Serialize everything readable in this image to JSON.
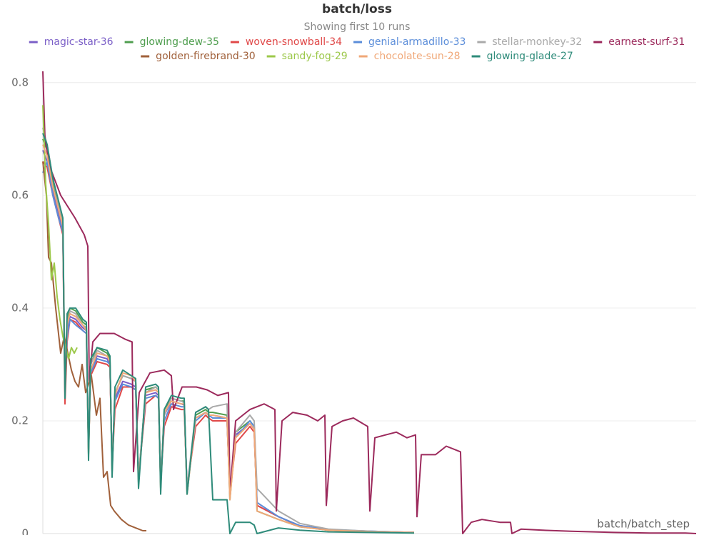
{
  "chart_data": {
    "type": "line",
    "title": "batch/loss",
    "subtitle": "Showing first 10 runs",
    "x_label": "batch/batch_step",
    "xlim": [
      0,
      915
    ],
    "ylim": [
      0,
      0.82
    ],
    "yticks": [
      0,
      0.2,
      0.4,
      0.6,
      0.8
    ],
    "grid": true,
    "series": [
      {
        "name": "magic-star-36",
        "color": "#7b5fc7",
        "x": [
          0,
          6,
          14,
          22,
          28,
          31,
          34,
          38,
          46,
          56,
          61,
          64,
          67,
          76,
          90,
          94,
          97,
          101,
          112,
          124,
          130,
          134,
          144,
          158,
          162,
          165,
          170,
          180,
          194,
          198,
          202,
          214,
          228,
          232,
          238,
          258,
          262,
          270,
          290,
          296,
          300,
          330,
          360,
          400,
          460,
          520
        ],
        "values": [
          0.68,
          0.66,
          0.61,
          0.57,
          0.54,
          0.26,
          0.36,
          0.385,
          0.38,
          0.365,
          0.36,
          0.15,
          0.29,
          0.315,
          0.31,
          0.3,
          0.12,
          0.24,
          0.27,
          0.265,
          0.26,
          0.1,
          0.245,
          0.25,
          0.245,
          0.09,
          0.21,
          0.235,
          0.23,
          0.228,
          0.08,
          0.205,
          0.215,
          0.21,
          0.21,
          0.205,
          0.07,
          0.175,
          0.195,
          0.185,
          0.05,
          0.03,
          0.014,
          0.007,
          0.004,
          0.002
        ]
      },
      {
        "name": "glowing-dew-35",
        "color": "#4f9e4f",
        "x": [
          0,
          6,
          14,
          22,
          28,
          31,
          34,
          38,
          46,
          56,
          61,
          64,
          67,
          76,
          90,
          94,
          97,
          101,
          112,
          124,
          130,
          134,
          144,
          158,
          162,
          165,
          170,
          180,
          194,
          198,
          202,
          214,
          228,
          232,
          238,
          258,
          262,
          270,
          290,
          296,
          300,
          330,
          360,
          400,
          460,
          520
        ],
        "values": [
          0.7,
          0.68,
          0.62,
          0.58,
          0.55,
          0.25,
          0.38,
          0.4,
          0.395,
          0.375,
          0.37,
          0.14,
          0.3,
          0.33,
          0.32,
          0.31,
          0.11,
          0.25,
          0.28,
          0.275,
          0.27,
          0.09,
          0.255,
          0.26,
          0.255,
          0.08,
          0.22,
          0.24,
          0.235,
          0.235,
          0.07,
          0.21,
          0.22,
          0.215,
          0.215,
          0.21,
          0.06,
          0.18,
          0.2,
          0.19,
          0.04,
          0.025,
          0.012,
          0.006,
          0.003,
          0.002
        ]
      },
      {
        "name": "woven-snowball-34",
        "color": "#e04848",
        "x": [
          0,
          6,
          14,
          22,
          28,
          31,
          34,
          38,
          46,
          56,
          61,
          64,
          67,
          76,
          90,
          94,
          97,
          101,
          112,
          124,
          130,
          134,
          144,
          158,
          162,
          165,
          170,
          180,
          194,
          198,
          202,
          214,
          228,
          232,
          238,
          258,
          262,
          270,
          290,
          296,
          300,
          330,
          360,
          400,
          460,
          520
        ],
        "values": [
          0.66,
          0.65,
          0.6,
          0.56,
          0.53,
          0.23,
          0.34,
          0.38,
          0.375,
          0.36,
          0.355,
          0.15,
          0.28,
          0.305,
          0.3,
          0.295,
          0.12,
          0.22,
          0.26,
          0.26,
          0.255,
          0.1,
          0.23,
          0.245,
          0.24,
          0.09,
          0.19,
          0.225,
          0.22,
          0.22,
          0.08,
          0.19,
          0.21,
          0.205,
          0.2,
          0.2,
          0.07,
          0.16,
          0.19,
          0.18,
          0.05,
          0.03,
          0.013,
          0.006,
          0.003,
          0.002
        ]
      },
      {
        "name": "genial-armadillo-33",
        "color": "#5b8dd9",
        "x": [
          0,
          6,
          14,
          22,
          28,
          31,
          34,
          38,
          46,
          56,
          61,
          64,
          67,
          76,
          90,
          94,
          97,
          101,
          112,
          124,
          130,
          134,
          144,
          158,
          162,
          165,
          170,
          180,
          194,
          198,
          202,
          214,
          228,
          232,
          238,
          258,
          262,
          270,
          290,
          296,
          300,
          330,
          360,
          400,
          460,
          520
        ],
        "values": [
          0.64,
          0.66,
          0.6,
          0.56,
          0.535,
          0.27,
          0.35,
          0.38,
          0.37,
          0.36,
          0.355,
          0.16,
          0.285,
          0.31,
          0.305,
          0.3,
          0.13,
          0.235,
          0.265,
          0.26,
          0.255,
          0.1,
          0.24,
          0.245,
          0.24,
          0.09,
          0.2,
          0.23,
          0.225,
          0.225,
          0.08,
          0.2,
          0.215,
          0.21,
          0.205,
          0.205,
          0.07,
          0.17,
          0.2,
          0.19,
          0.055,
          0.03,
          0.014,
          0.007,
          0.004,
          0.002
        ]
      },
      {
        "name": "stellar-monkey-32",
        "color": "#a9a9a9",
        "x": [
          0,
          6,
          14,
          22,
          28,
          31,
          34,
          38,
          46,
          56,
          61,
          64,
          67,
          76,
          90,
          94,
          97,
          101,
          112,
          124,
          130,
          134,
          144,
          158,
          162,
          165,
          170,
          180,
          194,
          198,
          202,
          214,
          228,
          232,
          238,
          258,
          262,
          270,
          290,
          296,
          300,
          330,
          360,
          400,
          460,
          520
        ],
        "values": [
          0.72,
          0.69,
          0.63,
          0.585,
          0.555,
          0.27,
          0.37,
          0.395,
          0.39,
          0.37,
          0.365,
          0.15,
          0.3,
          0.325,
          0.315,
          0.305,
          0.12,
          0.25,
          0.28,
          0.275,
          0.27,
          0.1,
          0.25,
          0.26,
          0.255,
          0.09,
          0.21,
          0.24,
          0.235,
          0.232,
          0.08,
          0.215,
          0.225,
          0.22,
          0.225,
          0.23,
          0.07,
          0.18,
          0.21,
          0.2,
          0.08,
          0.04,
          0.018,
          0.008,
          0.004,
          0.002
        ]
      },
      {
        "name": "earnest-surf-31",
        "color": "#9c2a5c",
        "x": [
          0,
          3,
          10,
          25,
          45,
          58,
          63,
          65,
          70,
          80,
          100,
          115,
          125,
          127,
          135,
          150,
          170,
          180,
          183,
          195,
          215,
          230,
          245,
          260,
          262,
          270,
          290,
          310,
          325,
          327,
          335,
          350,
          370,
          385,
          395,
          397,
          405,
          420,
          435,
          455,
          458,
          465,
          480,
          495,
          510,
          522,
          524,
          530,
          550,
          565,
          585,
          588,
          600,
          615,
          640,
          655,
          657,
          670,
          700,
          740,
          800,
          850,
          900,
          915
        ],
        "values": [
          0.82,
          0.7,
          0.65,
          0.6,
          0.56,
          0.53,
          0.51,
          0.27,
          0.34,
          0.355,
          0.355,
          0.345,
          0.34,
          0.11,
          0.25,
          0.285,
          0.29,
          0.28,
          0.22,
          0.26,
          0.26,
          0.255,
          0.245,
          0.25,
          0.07,
          0.2,
          0.22,
          0.23,
          0.22,
          0.04,
          0.2,
          0.215,
          0.21,
          0.2,
          0.21,
          0.05,
          0.19,
          0.2,
          0.205,
          0.19,
          0.04,
          0.17,
          0.175,
          0.18,
          0.17,
          0.175,
          0.03,
          0.14,
          0.14,
          0.155,
          0.145,
          0.0,
          0.02,
          0.025,
          0.02,
          0.02,
          0.0,
          0.008,
          0.006,
          0.004,
          0.002,
          0.001,
          0.001,
          0.0
        ]
      },
      {
        "name": "golden-firebrand-30",
        "color": "#a0603a",
        "x": [
          0,
          5,
          8,
          12,
          18,
          25,
          30,
          35,
          40,
          45,
          50,
          55,
          60,
          68,
          75,
          80,
          85,
          90,
          95,
          100,
          110,
          120,
          130,
          140,
          145
        ],
        "values": [
          0.66,
          0.6,
          0.49,
          0.48,
          0.4,
          0.32,
          0.35,
          0.32,
          0.29,
          0.27,
          0.26,
          0.3,
          0.25,
          0.28,
          0.21,
          0.24,
          0.1,
          0.11,
          0.05,
          0.04,
          0.025,
          0.015,
          0.01,
          0.005,
          0.005
        ]
      },
      {
        "name": "sandy-fog-29",
        "color": "#9cc84a",
        "x": [
          0,
          4,
          8,
          12,
          16,
          20,
          24,
          28,
          32,
          36,
          40,
          44,
          48
        ],
        "values": [
          0.76,
          0.62,
          0.55,
          0.45,
          0.48,
          0.42,
          0.38,
          0.35,
          0.33,
          0.31,
          0.33,
          0.32,
          0.33
        ]
      },
      {
        "name": "chocolate-sun-28",
        "color": "#f0a878",
        "x": [
          0,
          6,
          14,
          22,
          28,
          31,
          34,
          38,
          46,
          56,
          61,
          64,
          67,
          76,
          90,
          94,
          97,
          101,
          112,
          124,
          130,
          134,
          144,
          158,
          162,
          165,
          170,
          180,
          194,
          198,
          202,
          214,
          228,
          232,
          238,
          258,
          262,
          270,
          290,
          296,
          300,
          330,
          360,
          400,
          460,
          520
        ],
        "values": [
          0.69,
          0.67,
          0.615,
          0.575,
          0.545,
          0.26,
          0.37,
          0.39,
          0.385,
          0.37,
          0.36,
          0.14,
          0.29,
          0.32,
          0.315,
          0.305,
          0.11,
          0.245,
          0.285,
          0.28,
          0.27,
          0.09,
          0.25,
          0.255,
          0.25,
          0.08,
          0.215,
          0.235,
          0.23,
          0.23,
          0.07,
          0.205,
          0.215,
          0.21,
          0.21,
          0.205,
          0.06,
          0.17,
          0.195,
          0.185,
          0.04,
          0.025,
          0.012,
          0.006,
          0.003,
          0.002
        ]
      },
      {
        "name": "glowing-glade-27",
        "color": "#2e8b7a",
        "x": [
          0,
          6,
          14,
          22,
          28,
          31,
          34,
          38,
          46,
          56,
          61,
          64,
          67,
          76,
          90,
          94,
          97,
          101,
          112,
          124,
          130,
          134,
          144,
          158,
          162,
          165,
          170,
          180,
          194,
          198,
          202,
          214,
          228,
          232,
          238,
          258,
          262,
          270,
          290,
          296,
          300,
          330,
          360,
          400,
          460,
          520
        ],
        "values": [
          0.71,
          0.69,
          0.63,
          0.59,
          0.56,
          0.24,
          0.39,
          0.4,
          0.4,
          0.38,
          0.375,
          0.13,
          0.31,
          0.33,
          0.325,
          0.315,
          0.1,
          0.26,
          0.29,
          0.28,
          0.275,
          0.08,
          0.26,
          0.265,
          0.26,
          0.07,
          0.22,
          0.245,
          0.24,
          0.24,
          0.07,
          0.215,
          0.225,
          0.22,
          0.06,
          0.06,
          0.0,
          0.02,
          0.02,
          0.015,
          0.0,
          0.01,
          0.006,
          0.003,
          0.002,
          0.001
        ]
      }
    ]
  }
}
